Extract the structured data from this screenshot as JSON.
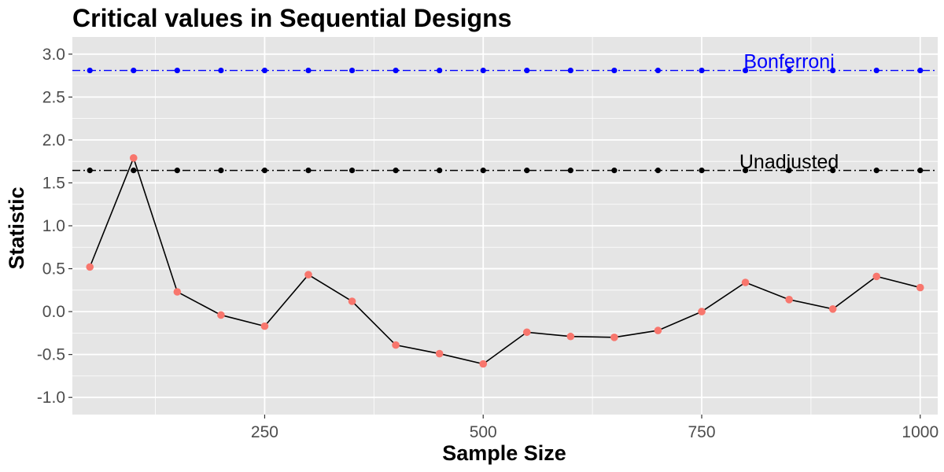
{
  "chart_data": {
    "type": "line",
    "title": "Critical values in Sequential Designs",
    "xlabel": "Sample Size",
    "ylabel": "Statistic",
    "xlim": [
      30,
      1020
    ],
    "ylim": [
      -1.2,
      3.2
    ],
    "x_ticks": [
      250,
      500,
      750,
      1000
    ],
    "y_ticks": [
      -1.0,
      -0.5,
      0.0,
      0.5,
      1.0,
      1.5,
      2.0,
      2.5,
      3.0
    ],
    "y_tick_labels": [
      "-1.0",
      "-0.5",
      "0.0",
      "0.5",
      "1.0",
      "1.5",
      "2.0",
      "2.5",
      "3.0"
    ],
    "grid": true,
    "x": [
      50,
      100,
      150,
      200,
      250,
      300,
      350,
      400,
      450,
      500,
      550,
      600,
      650,
      700,
      750,
      800,
      850,
      900,
      950,
      1000
    ],
    "series": [
      {
        "values": [
          0.52,
          1.79,
          0.23,
          -0.04,
          -0.17,
          0.43,
          0.12,
          -0.39,
          -0.49,
          -0.61,
          -0.24,
          -0.29,
          -0.3,
          -0.22,
          0.0,
          0.34,
          0.14,
          0.03,
          0.41,
          0.28
        ],
        "color": "#f8766d",
        "line_color": "#000000"
      }
    ],
    "reference_lines": [
      {
        "label": "Bonferroni",
        "value": 2.81,
        "color": "#0000ff",
        "label_x": 850,
        "label_y": 2.92
      },
      {
        "label": "Unadjusted",
        "value": 1.645,
        "color": "#000000",
        "label_x": 850,
        "label_y": 1.75
      }
    ],
    "colors": {
      "panel": "#e5e5e5",
      "grid": "#ffffff"
    }
  }
}
